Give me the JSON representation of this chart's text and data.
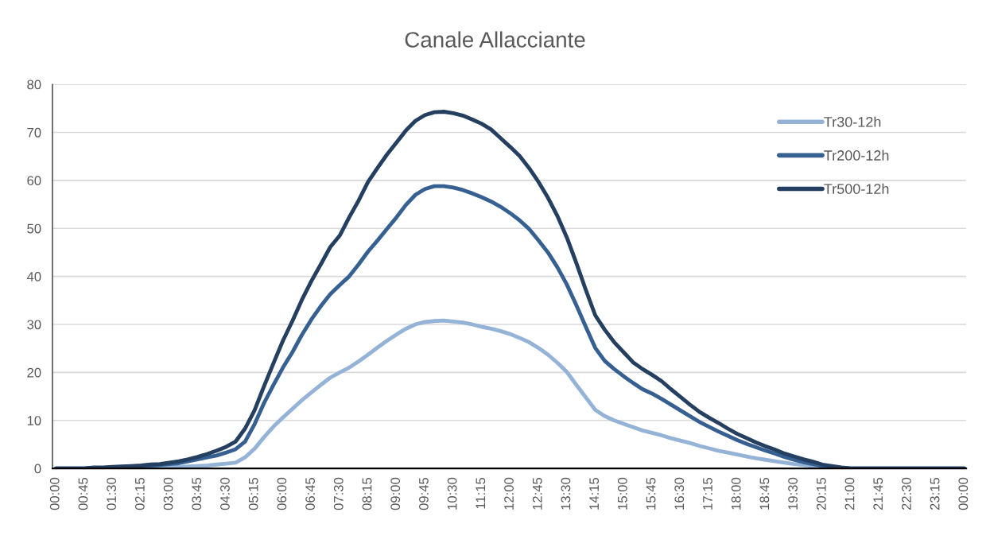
{
  "chart_data": {
    "type": "line",
    "title": "Canale Allacciante",
    "categories": [
      "00:00",
      null,
      null,
      "00:45",
      null,
      null,
      "01:30",
      null,
      null,
      "02:15",
      null,
      null,
      "03:00",
      null,
      null,
      "03:45",
      null,
      null,
      "04:30",
      null,
      null,
      "05:15",
      null,
      null,
      "06:00",
      null,
      null,
      "06:45",
      null,
      null,
      "07:30",
      null,
      null,
      "08:15",
      null,
      null,
      "09:00",
      null,
      null,
      "09:45",
      null,
      null,
      "10:30",
      null,
      null,
      "11:15",
      null,
      null,
      "12:00",
      null,
      null,
      "12:45",
      null,
      null,
      "13:30",
      null,
      null,
      "14:15",
      null,
      null,
      "15:00",
      null,
      null,
      "15:45",
      null,
      null,
      "16:30",
      null,
      null,
      "17:15",
      null,
      null,
      "18:00",
      null,
      null,
      "18:45",
      null,
      null,
      "19:30",
      null,
      null,
      "20:15",
      null,
      null,
      "21:00",
      null,
      null,
      "21:45",
      null,
      null,
      "22:30",
      null,
      null,
      "23:15",
      null,
      null,
      "00:00"
    ],
    "series": [
      {
        "name": "Tr30-12h",
        "color": "#95b3d7",
        "values": [
          0,
          0,
          0,
          0,
          0,
          0,
          0,
          0,
          0.1,
          0.1,
          0.1,
          0.2,
          0.2,
          0.3,
          0.4,
          0.5,
          0.6,
          0.8,
          1.0,
          1.2,
          2.3,
          4.1,
          6.5,
          8.7,
          10.6,
          12.4,
          14.2,
          15.8,
          17.4,
          18.9,
          20.0,
          21.0,
          22.3,
          23.7,
          25.2,
          26.6,
          27.9,
          29.1,
          30.0,
          30.5,
          30.7,
          30.8,
          30.6,
          30.4,
          30.0,
          29.5,
          29.1,
          28.6,
          28.0,
          27.2,
          26.3,
          25.1,
          23.7,
          22.0,
          20.1,
          17.4,
          14.8,
          12.2,
          10.9,
          10.0,
          9.3,
          8.6,
          7.9,
          7.4,
          6.9,
          6.3,
          5.8,
          5.3,
          4.7,
          4.2,
          3.7,
          3.3,
          2.9,
          2.5,
          2.1,
          1.8,
          1.5,
          1.2,
          0.9,
          0.7,
          0.5,
          0.3,
          0.1,
          0,
          0,
          0,
          0,
          0,
          0,
          0,
          0,
          0,
          0,
          0,
          0,
          0,
          0
        ]
      },
      {
        "name": "Tr200-12h",
        "color": "#366092",
        "values": [
          0,
          0,
          0,
          0,
          0.1,
          0.1,
          0.2,
          0.3,
          0.4,
          0.5,
          0.6,
          0.7,
          0.9,
          1.1,
          1.5,
          1.9,
          2.3,
          2.7,
          3.3,
          4.0,
          5.6,
          9.2,
          13.6,
          17.4,
          21.0,
          24.2,
          27.8,
          31.0,
          33.8,
          36.3,
          38.2,
          40.0,
          42.5,
          45.2,
          47.5,
          49.9,
          52.3,
          54.9,
          57.0,
          58.2,
          58.8,
          58.8,
          58.5,
          58.0,
          57.3,
          56.5,
          55.6,
          54.5,
          53.2,
          51.7,
          49.9,
          47.5,
          45.0,
          41.9,
          38.3,
          34.0,
          29.5,
          25.1,
          22.4,
          20.7,
          19.2,
          17.8,
          16.5,
          15.6,
          14.5,
          13.3,
          12.1,
          10.9,
          9.7,
          8.7,
          7.7,
          6.8,
          5.9,
          5.1,
          4.4,
          3.7,
          3.1,
          2.4,
          1.8,
          1.3,
          0.9,
          0.5,
          0.3,
          0.1,
          0,
          0,
          0,
          0,
          0,
          0,
          0,
          0,
          0,
          0,
          0,
          0,
          0
        ]
      },
      {
        "name": "Tr500-12h",
        "color": "#243f60",
        "values": [
          0,
          0,
          0,
          0,
          0.2,
          0.2,
          0.3,
          0.4,
          0.5,
          0.6,
          0.8,
          0.9,
          1.2,
          1.5,
          1.9,
          2.4,
          3.0,
          3.7,
          4.5,
          5.6,
          8.3,
          12.1,
          17.1,
          21.9,
          26.6,
          30.7,
          35.1,
          39.0,
          42.5,
          46.1,
          48.5,
          52.3,
          55.8,
          59.7,
          62.6,
          65.4,
          67.9,
          70.4,
          72.4,
          73.6,
          74.2,
          74.3,
          74.0,
          73.5,
          72.7,
          71.8,
          70.6,
          68.8,
          67.0,
          65.1,
          62.6,
          59.7,
          56.4,
          52.6,
          48.1,
          42.8,
          37.2,
          31.9,
          28.9,
          26.3,
          24.2,
          22.1,
          20.7,
          19.5,
          18.2,
          16.5,
          14.9,
          13.3,
          11.8,
          10.6,
          9.5,
          8.3,
          7.2,
          6.3,
          5.4,
          4.6,
          3.9,
          3.1,
          2.5,
          1.9,
          1.4,
          0.8,
          0.5,
          0.2,
          0,
          0,
          0,
          0,
          0,
          0,
          0,
          0,
          0,
          0,
          0,
          0,
          0
        ]
      }
    ],
    "ylim": [
      0,
      80
    ],
    "yticks": [
      0,
      10,
      20,
      30,
      40,
      50,
      60,
      70,
      80
    ],
    "grid": "y",
    "legend": "top right",
    "marker": "none",
    "line_style": "solid"
  }
}
